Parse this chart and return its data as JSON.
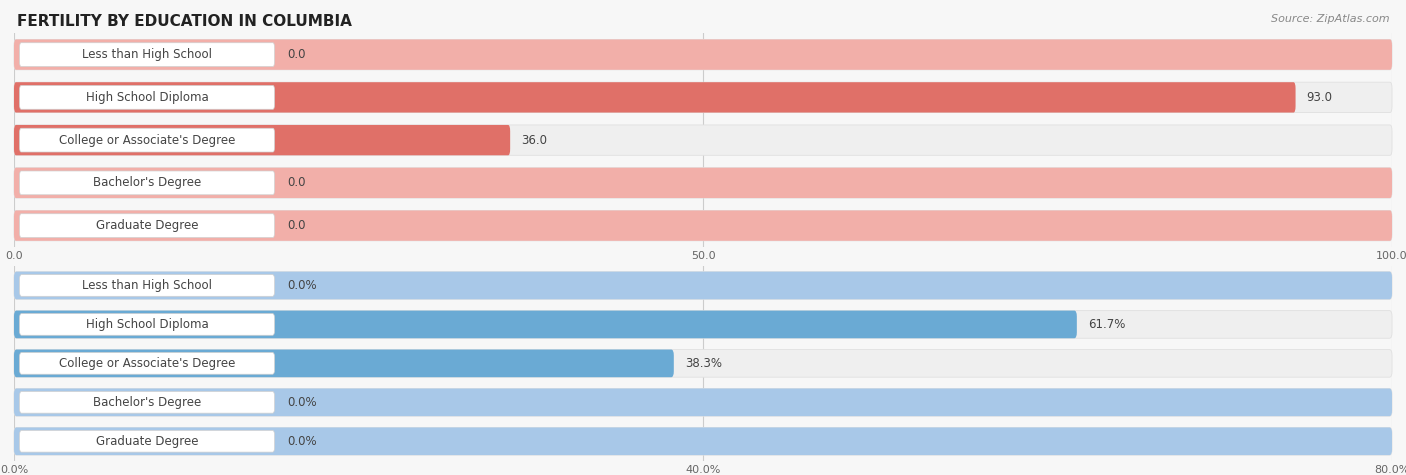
{
  "title": "FERTILITY BY EDUCATION IN COLUMBIA",
  "source": "Source: ZipAtlas.com",
  "top_chart": {
    "categories": [
      "Less than High School",
      "High School Diploma",
      "College or Associate's Degree",
      "Bachelor's Degree",
      "Graduate Degree"
    ],
    "values": [
      0.0,
      93.0,
      36.0,
      0.0,
      0.0
    ],
    "value_labels": [
      "0.0",
      "93.0",
      "36.0",
      "0.0",
      "0.0"
    ],
    "bar_color": "#E07068",
    "bar_color_zero": "#F2AFA9",
    "x_ticks": [
      0.0,
      50.0,
      100.0
    ],
    "x_tick_labels": [
      "0.0",
      "50.0",
      "100.0"
    ],
    "xlim": [
      0,
      100
    ]
  },
  "bottom_chart": {
    "categories": [
      "Less than High School",
      "High School Diploma",
      "College or Associate's Degree",
      "Bachelor's Degree",
      "Graduate Degree"
    ],
    "values": [
      0.0,
      61.7,
      38.3,
      0.0,
      0.0
    ],
    "value_labels": [
      "0.0%",
      "61.7%",
      "38.3%",
      "0.0%",
      "0.0%"
    ],
    "bar_color": "#6AAAD4",
    "bar_color_zero": "#A8C8E8",
    "x_ticks": [
      0.0,
      40.0,
      80.0
    ],
    "x_tick_labels": [
      "0.0%",
      "40.0%",
      "80.0%"
    ],
    "xlim": [
      0,
      80
    ]
  },
  "bg_color": "#f7f7f7",
  "row_bg_color": "#efefef",
  "row_edge_color": "#e0e0e0",
  "label_bg_color": "#ffffff",
  "label_edge_color": "#d0d0d0",
  "label_text_color": "#444444",
  "value_text_color": "#444444",
  "title_color": "#222222",
  "source_color": "#888888",
  "grid_color": "#cccccc",
  "title_fontsize": 11,
  "label_fontsize": 8.5,
  "value_fontsize": 8.5,
  "tick_fontsize": 8
}
